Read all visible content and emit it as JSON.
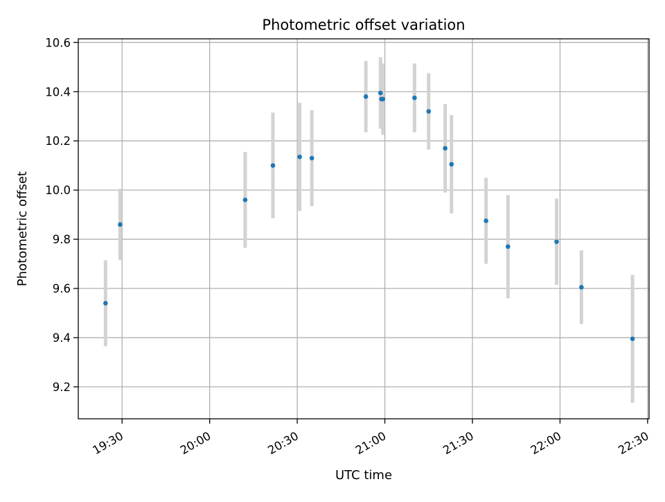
{
  "chart_data": {
    "type": "scatter",
    "title": "Photometric offset variation",
    "xlabel": "UTC time",
    "ylabel": "Photometric offset",
    "x_ticks": [
      "19:30",
      "20:00",
      "20:30",
      "21:00",
      "21:30",
      "22:00",
      "22:30"
    ],
    "y_ticks": [
      "9.2",
      "9.4",
      "9.6",
      "9.8",
      "10.0",
      "10.2",
      "10.4",
      "10.6"
    ],
    "xlim": [
      "19:15",
      "22:30:30"
    ],
    "ylim": [
      9.07,
      10.615
    ],
    "grid": true,
    "point_color": "#1f77b4",
    "errorbar_color": "#d3d3d3",
    "series": [
      {
        "points": [
          {
            "t": "19:24:20",
            "y": 9.54,
            "err": 0.175
          },
          {
            "t": "19:29:20",
            "y": 9.86,
            "err": 0.145
          },
          {
            "t": "20:12:10",
            "y": 9.96,
            "err": 0.195
          },
          {
            "t": "20:21:40",
            "y": 10.1,
            "err": 0.215
          },
          {
            "t": "20:30:50",
            "y": 10.135,
            "err": 0.22
          },
          {
            "t": "20:35:00",
            "y": 10.13,
            "err": 0.195
          },
          {
            "t": "20:53:30",
            "y": 10.38,
            "err": 0.145
          },
          {
            "t": "20:58:30",
            "y": 10.395,
            "err": 0.145
          },
          {
            "t": "20:58:50",
            "y": 10.37,
            "err": 0.12
          },
          {
            "t": "20:59:20",
            "y": 10.37,
            "err": 0.145
          },
          {
            "t": "21:10:10",
            "y": 10.375,
            "err": 0.14
          },
          {
            "t": "21:15:00",
            "y": 10.32,
            "err": 0.155
          },
          {
            "t": "21:20:40",
            "y": 10.17,
            "err": 0.18
          },
          {
            "t": "21:22:50",
            "y": 10.105,
            "err": 0.2
          },
          {
            "t": "21:34:40",
            "y": 9.875,
            "err": 0.175
          },
          {
            "t": "21:42:10",
            "y": 9.77,
            "err": 0.21
          },
          {
            "t": "21:58:50",
            "y": 9.79,
            "err": 0.175
          },
          {
            "t": "22:07:20",
            "y": 9.605,
            "err": 0.15
          },
          {
            "t": "22:24:50",
            "y": 9.395,
            "err": 0.26
          }
        ]
      }
    ]
  }
}
